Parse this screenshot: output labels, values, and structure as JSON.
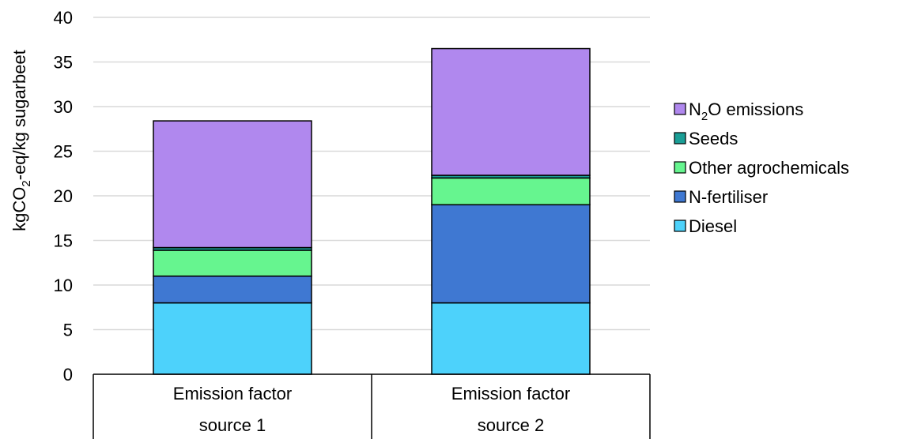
{
  "chart_data": {
    "type": "bar",
    "stacked": true,
    "title": "",
    "ylabel": "kgCO₂-eq/kg sugarbeet",
    "ylabel_parts": {
      "pre": "kgCO",
      "sub": "2",
      "post": "-eq/kg sugarbeet"
    },
    "xlabel": "",
    "ylim": [
      0,
      40
    ],
    "yticks": [
      0,
      5,
      10,
      15,
      20,
      25,
      30,
      35,
      40
    ],
    "grid": true,
    "legend_position": "right",
    "categories": [
      {
        "line1": "Emission factor",
        "line2": "source 1"
      },
      {
        "line1": "Emission factor",
        "line2": "source 2"
      }
    ],
    "series": [
      {
        "name": "Diesel",
        "color": "#4dd2fb",
        "values": [
          8.0,
          8.0
        ]
      },
      {
        "name": "N-fertiliser",
        "color": "#3f78d2",
        "values": [
          3.0,
          11.0
        ]
      },
      {
        "name": "Other agrochemicals",
        "color": "#66f58f",
        "values": [
          2.9,
          3.0
        ]
      },
      {
        "name": "Seeds",
        "color": "#1a9e96",
        "values": [
          0.3,
          0.3
        ]
      },
      {
        "name": "N₂O emissions",
        "label_parts": {
          "pre": "N",
          "sub": "2",
          "post": "O emissions"
        },
        "color": "#b088ee",
        "values": [
          14.2,
          14.2
        ]
      }
    ],
    "legend_order": [
      "N₂O emissions",
      "Seeds",
      "Other agrochemicals",
      "N-fertiliser",
      "Diesel"
    ]
  }
}
